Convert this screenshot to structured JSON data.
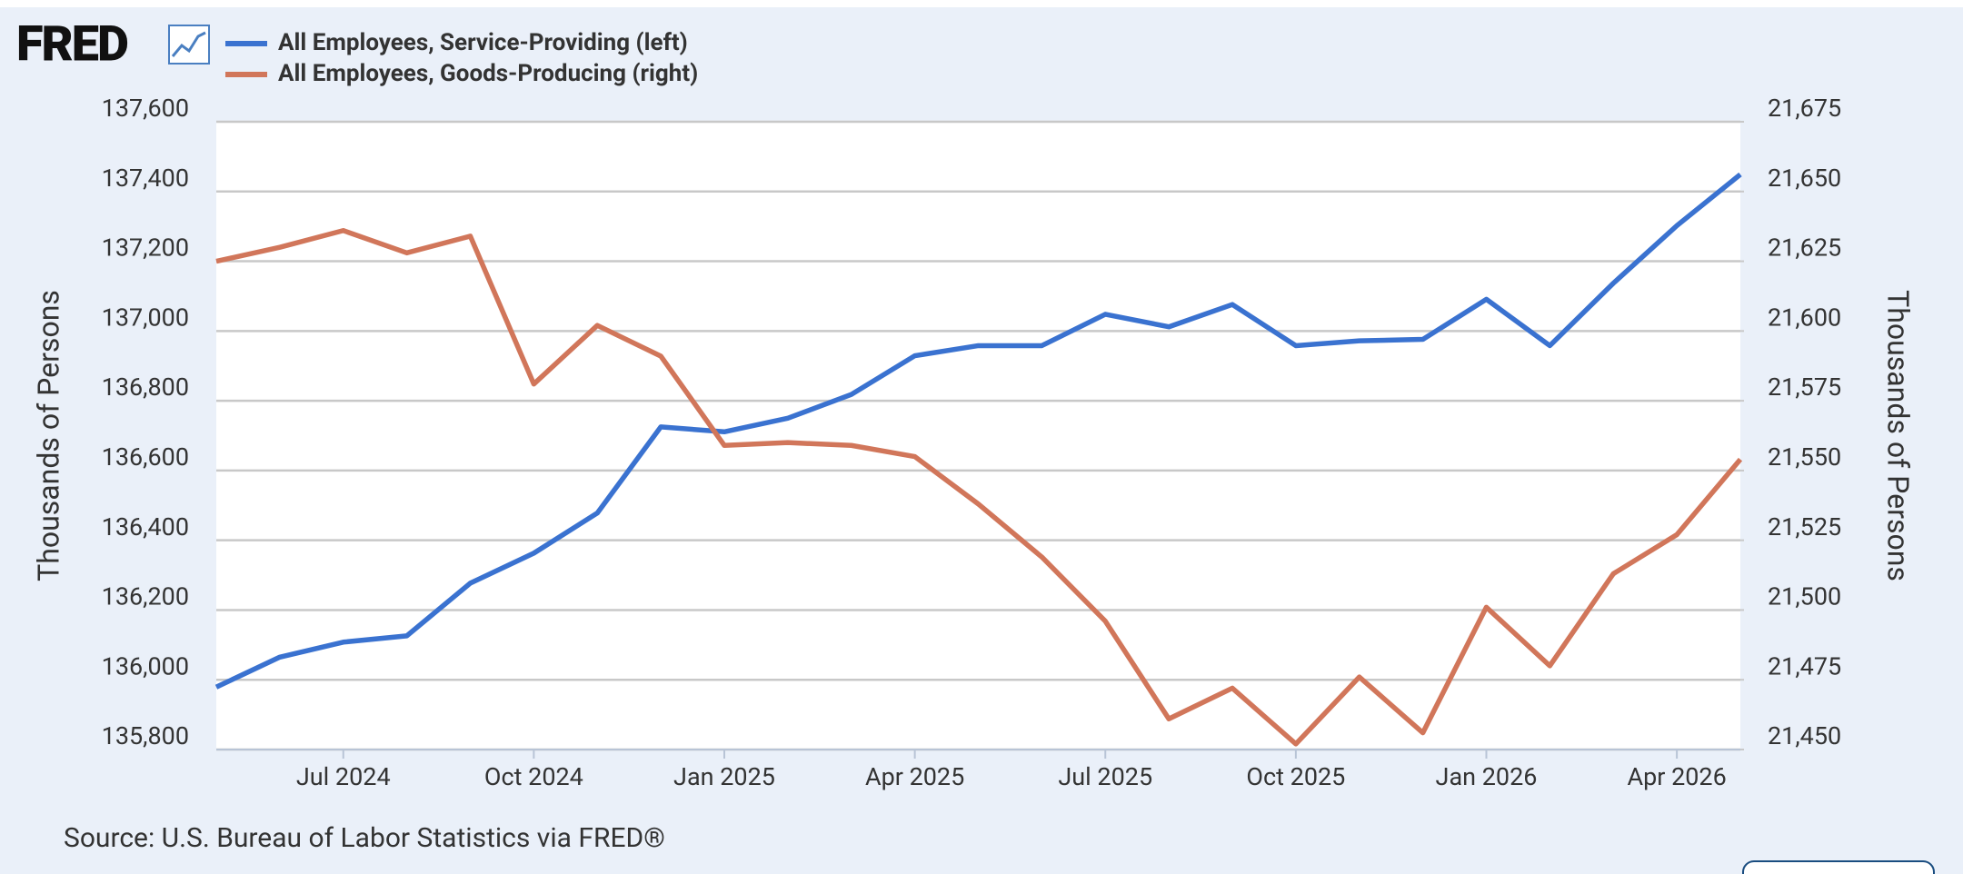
{
  "logo": "FRED",
  "chart_data": {
    "type": "line",
    "x": [
      "2024-05",
      "2024-06",
      "2024-07",
      "2024-08",
      "2024-09",
      "2024-10",
      "2024-11",
      "2024-12",
      "2025-01",
      "2025-02",
      "2025-03",
      "2025-04",
      "2025-05",
      "2025-06",
      "2025-07",
      "2025-08",
      "2025-09",
      "2025-10",
      "2025-11",
      "2025-12",
      "2026-01",
      "2026-02",
      "2026-03",
      "2026-04",
      "2026-05"
    ],
    "xlim": [
      "2024-05",
      "2026-05"
    ],
    "xticks": [
      {
        "value": "2024-07",
        "label": "Jul 2024"
      },
      {
        "value": "2024-10",
        "label": "Oct 2024"
      },
      {
        "value": "2025-01",
        "label": "Jan 2025"
      },
      {
        "value": "2025-04",
        "label": "Apr 2025"
      },
      {
        "value": "2025-07",
        "label": "Jul 2025"
      },
      {
        "value": "2025-10",
        "label": "Oct 2025"
      },
      {
        "value": "2026-01",
        "label": "Jan 2026"
      },
      {
        "value": "2026-04",
        "label": "Apr 2026"
      }
    ],
    "series": [
      {
        "name": "All Employees, Service-Providing (left)",
        "color": "#3a72d0",
        "axis": "y",
        "values": [
          135979,
          136065,
          136108,
          136126,
          136277,
          136363,
          136478,
          136725,
          136711,
          136750,
          136818,
          136929,
          136958,
          136958,
          137048,
          137012,
          137076,
          136958,
          136972,
          136976,
          137091,
          136958,
          137137,
          137302,
          137449
        ]
      },
      {
        "name": "All Employees, Goods-Producing (right)",
        "color": "#d1765a",
        "axis": "y2",
        "values": [
          21625,
          21630,
          21636,
          21628,
          21634,
          21581,
          21602,
          21591,
          21559,
          21560,
          21559,
          21555,
          21538,
          21519,
          21496,
          21461,
          21472,
          21452,
          21476,
          21456,
          21501,
          21480,
          21513,
          21527,
          21554
        ]
      }
    ],
    "ylim": [
      135800,
      137600
    ],
    "yticks": [
      {
        "value": 135800,
        "label": "135,800"
      },
      {
        "value": 136000,
        "label": "136,000"
      },
      {
        "value": 136200,
        "label": "136,200"
      },
      {
        "value": 136400,
        "label": "136,400"
      },
      {
        "value": 136600,
        "label": "136,600"
      },
      {
        "value": 136800,
        "label": "136,800"
      },
      {
        "value": 137000,
        "label": "137,000"
      },
      {
        "value": 137200,
        "label": "137,200"
      },
      {
        "value": 137400,
        "label": "137,400"
      },
      {
        "value": 137600,
        "label": "137,600"
      }
    ],
    "y2lim": [
      21450,
      21675
    ],
    "y2ticks": [
      {
        "value": 21450,
        "label": "21,450"
      },
      {
        "value": 21475,
        "label": "21,475"
      },
      {
        "value": 21500,
        "label": "21,500"
      },
      {
        "value": 21525,
        "label": "21,525"
      },
      {
        "value": 21550,
        "label": "21,550"
      },
      {
        "value": 21575,
        "label": "21,575"
      },
      {
        "value": 21600,
        "label": "21,600"
      },
      {
        "value": 21625,
        "label": "21,625"
      },
      {
        "value": 21650,
        "label": "21,650"
      },
      {
        "value": 21675,
        "label": "21,675"
      }
    ],
    "y_label": "Thousands of Persons",
    "y2_label": "Thousands of Persons",
    "grid": true,
    "source": "Source: U.S. Bureau of Labor Statistics via FRED®"
  }
}
